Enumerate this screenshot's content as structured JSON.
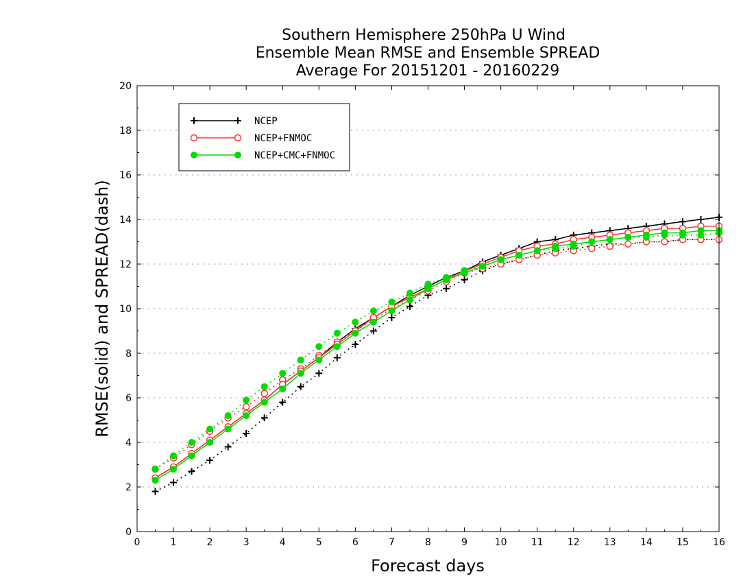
{
  "chart_data": {
    "type": "line",
    "title": [
      "Southern Hemisphere 250hPa U Wind",
      "Ensemble Mean RMSE and Ensemble SPREAD",
      "Average For 20151201 - 20160229"
    ],
    "xlabel": "Forecast days",
    "ylabel": "RMSE(solid) and SPREAD(dash)",
    "xlim": [
      0,
      16
    ],
    "ylim": [
      0,
      20
    ],
    "xticks": [
      0,
      1,
      2,
      3,
      4,
      5,
      6,
      7,
      8,
      9,
      10,
      11,
      12,
      13,
      14,
      15,
      16
    ],
    "yticks": [
      0,
      2,
      4,
      6,
      8,
      10,
      12,
      14,
      16,
      18,
      20
    ],
    "grid": "horizontal-dotted",
    "legend_position": "top-left",
    "x": [
      0.5,
      1,
      1.5,
      2,
      2.5,
      3,
      3.5,
      4,
      4.5,
      5,
      5.5,
      6,
      6.5,
      7,
      7.5,
      8,
      8.5,
      9,
      9.5,
      10,
      10.5,
      11,
      11.5,
      12,
      12.5,
      13,
      13.5,
      14,
      14.5,
      15,
      15.5,
      16
    ],
    "series": [
      {
        "name": "NCEP",
        "color": "#000000",
        "marker": "plus",
        "rmse": [
          2.4,
          2.9,
          3.5,
          4.1,
          4.7,
          5.3,
          5.9,
          6.6,
          7.2,
          7.8,
          8.5,
          9.1,
          9.6,
          10.1,
          10.6,
          11.0,
          11.4,
          11.7,
          12.1,
          12.4,
          12.7,
          13.0,
          13.1,
          13.3,
          13.4,
          13.5,
          13.6,
          13.7,
          13.8,
          13.9,
          14.0,
          14.1
        ],
        "spread": [
          1.8,
          2.2,
          2.7,
          3.2,
          3.8,
          4.4,
          5.1,
          5.8,
          6.5,
          7.1,
          7.8,
          8.4,
          9.0,
          9.6,
          10.1,
          10.6,
          10.9,
          11.3,
          11.7,
          12.0,
          12.2,
          12.4,
          12.6,
          12.7,
          12.8,
          12.9,
          12.9,
          13.0,
          13.0,
          13.1,
          13.1,
          13.1
        ]
      },
      {
        "name": "NCEP+FNMOC",
        "color": "#ff3333",
        "marker": "open-circle",
        "rmse": [
          2.4,
          2.9,
          3.5,
          4.1,
          4.7,
          5.3,
          5.9,
          6.6,
          7.2,
          7.8,
          8.4,
          9.0,
          9.6,
          10.1,
          10.5,
          10.9,
          11.3,
          11.7,
          12.0,
          12.3,
          12.6,
          12.8,
          12.9,
          13.1,
          13.2,
          13.3,
          13.4,
          13.5,
          13.6,
          13.6,
          13.7,
          13.7
        ],
        "spread": [
          2.8,
          3.3,
          3.9,
          4.5,
          5.1,
          5.6,
          6.2,
          6.8,
          7.3,
          7.9,
          8.5,
          9.0,
          9.5,
          10.0,
          10.4,
          10.8,
          11.2,
          11.6,
          11.8,
          12.0,
          12.2,
          12.4,
          12.5,
          12.6,
          12.7,
          12.8,
          12.9,
          13.0,
          13.0,
          13.1,
          13.1,
          13.1
        ]
      },
      {
        "name": "NCEP+CMC+FNMOC",
        "color": "#00dd00",
        "marker": "filled-circle",
        "rmse": [
          2.3,
          2.8,
          3.4,
          4.0,
          4.6,
          5.2,
          5.8,
          6.4,
          7.1,
          7.7,
          8.3,
          8.9,
          9.4,
          9.9,
          10.4,
          10.9,
          11.3,
          11.6,
          11.9,
          12.2,
          12.4,
          12.6,
          12.8,
          12.9,
          13.0,
          13.1,
          13.2,
          13.3,
          13.4,
          13.4,
          13.5,
          13.5
        ],
        "spread": [
          2.8,
          3.4,
          4.0,
          4.6,
          5.2,
          5.9,
          6.5,
          7.1,
          7.7,
          8.3,
          8.9,
          9.4,
          9.9,
          10.3,
          10.7,
          11.1,
          11.4,
          11.7,
          11.9,
          12.2,
          12.4,
          12.6,
          12.7,
          12.8,
          13.0,
          13.1,
          13.2,
          13.2,
          13.3,
          13.3,
          13.3,
          13.4
        ]
      }
    ]
  }
}
